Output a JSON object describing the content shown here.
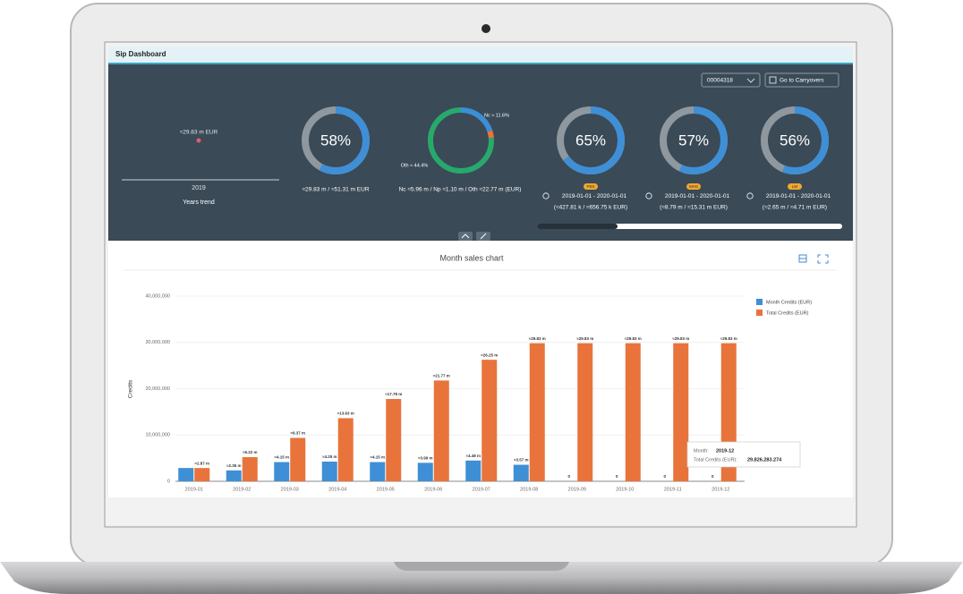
{
  "header": {
    "title": "Sip Dashboard"
  },
  "toolbar": {
    "selector": "00004318",
    "button": "Go to Carryovers"
  },
  "years_trend": {
    "value_label": "≈29.83 m EUR",
    "year": "2019",
    "caption": "Years trend"
  },
  "summary_gauge": {
    "value": 58,
    "label": "58%",
    "caption": "≈29.83 m / ≈51.31 m EUR"
  },
  "split_donut": {
    "segments": [
      {
        "value": 5.96,
        "color": "#3b8fd6"
      },
      {
        "value": 1.1,
        "color": "#e8743b"
      },
      {
        "value": 22.77,
        "color": "#27a96c"
      }
    ],
    "labels": [
      "Nc ≈ 11.6%",
      "Oth ≈ 44.4%"
    ],
    "caption": "Nc ≈5.96 m / Np ≈1.10 m / Oth ≈22.77 m (EUR)"
  },
  "period_gauges": [
    {
      "badge": "PBS",
      "value": 65,
      "label": "65%",
      "period": "2019-01-01 - 2020-01-01",
      "amounts": "(≈427.81 k / ≈656.75 k EUR)"
    },
    {
      "badge": "MHS",
      "value": 57,
      "label": "57%",
      "period": "2019-01-01 - 2020-01-01",
      "amounts": "(≈8.79 m / ≈15.31 m EUR)"
    },
    {
      "badge": "LM",
      "value": 56,
      "label": "56%",
      "period": "2019-01-01 - 2020-01-01",
      "amounts": "(≈2.65 m / ≈4.71 m EUR)"
    }
  ],
  "chart_data": {
    "type": "bar",
    "title": "Month sales chart",
    "y_label": "Credits",
    "categories": [
      "2019-01",
      "2019-02",
      "2019-03",
      "2019-04",
      "2019-05",
      "2019-06",
      "2019-07",
      "2019-08",
      "2019-09",
      "2019-10",
      "2019-11",
      "2019-12"
    ],
    "series": [
      {
        "name": "Month Credits (EUR)",
        "color": "#3f8fd6",
        "values": [
          2870000,
          2350000,
          4150000,
          4250000,
          4150000,
          3990000,
          4480000,
          3570000,
          0,
          0,
          0,
          0
        ],
        "value_labels": [
          null,
          "≈2.35 m",
          "≈4.15 m",
          "≈4.25 m",
          "≈4.15 m",
          "≈3.99 m",
          "≈4.48 m",
          "≈3.57 m",
          "0",
          "0",
          "0",
          "0"
        ]
      },
      {
        "name": "Total Credits (EUR)",
        "color": "#e8743b",
        "values": [
          2870000,
          5220000,
          9370000,
          13630000,
          17780000,
          21770000,
          26250000,
          29826283.274,
          29826283.274,
          29826283.274,
          29826283.274,
          29826283.274
        ],
        "value_labels": [
          "≈2.87 m",
          "≈5.22 m",
          "≈9.37 m",
          "≈13.63 m",
          "≈17.78 m",
          "≈21.77 m",
          "≈26.25 m",
          "≈29.83 m",
          "≈29.83 m",
          "≈29.83 m",
          "≈29.83 m",
          "≈29.83 m"
        ]
      }
    ],
    "ylim": [
      0,
      40000000
    ],
    "yticks": [
      0,
      {
        "value": 10000000,
        "label": "10,000,000"
      },
      {
        "value": 20000000,
        "label": "20,000,000"
      },
      {
        "value": 30000000,
        "label": "30,000,000"
      },
      {
        "value": 40000000,
        "label": "40,000,000"
      }
    ],
    "grid": true,
    "legend": "top-right",
    "tooltip": {
      "month_key": "Month:",
      "month": "2019-12",
      "value_key": "Total Credits (EUR):",
      "value": "29,826,283.274"
    }
  }
}
